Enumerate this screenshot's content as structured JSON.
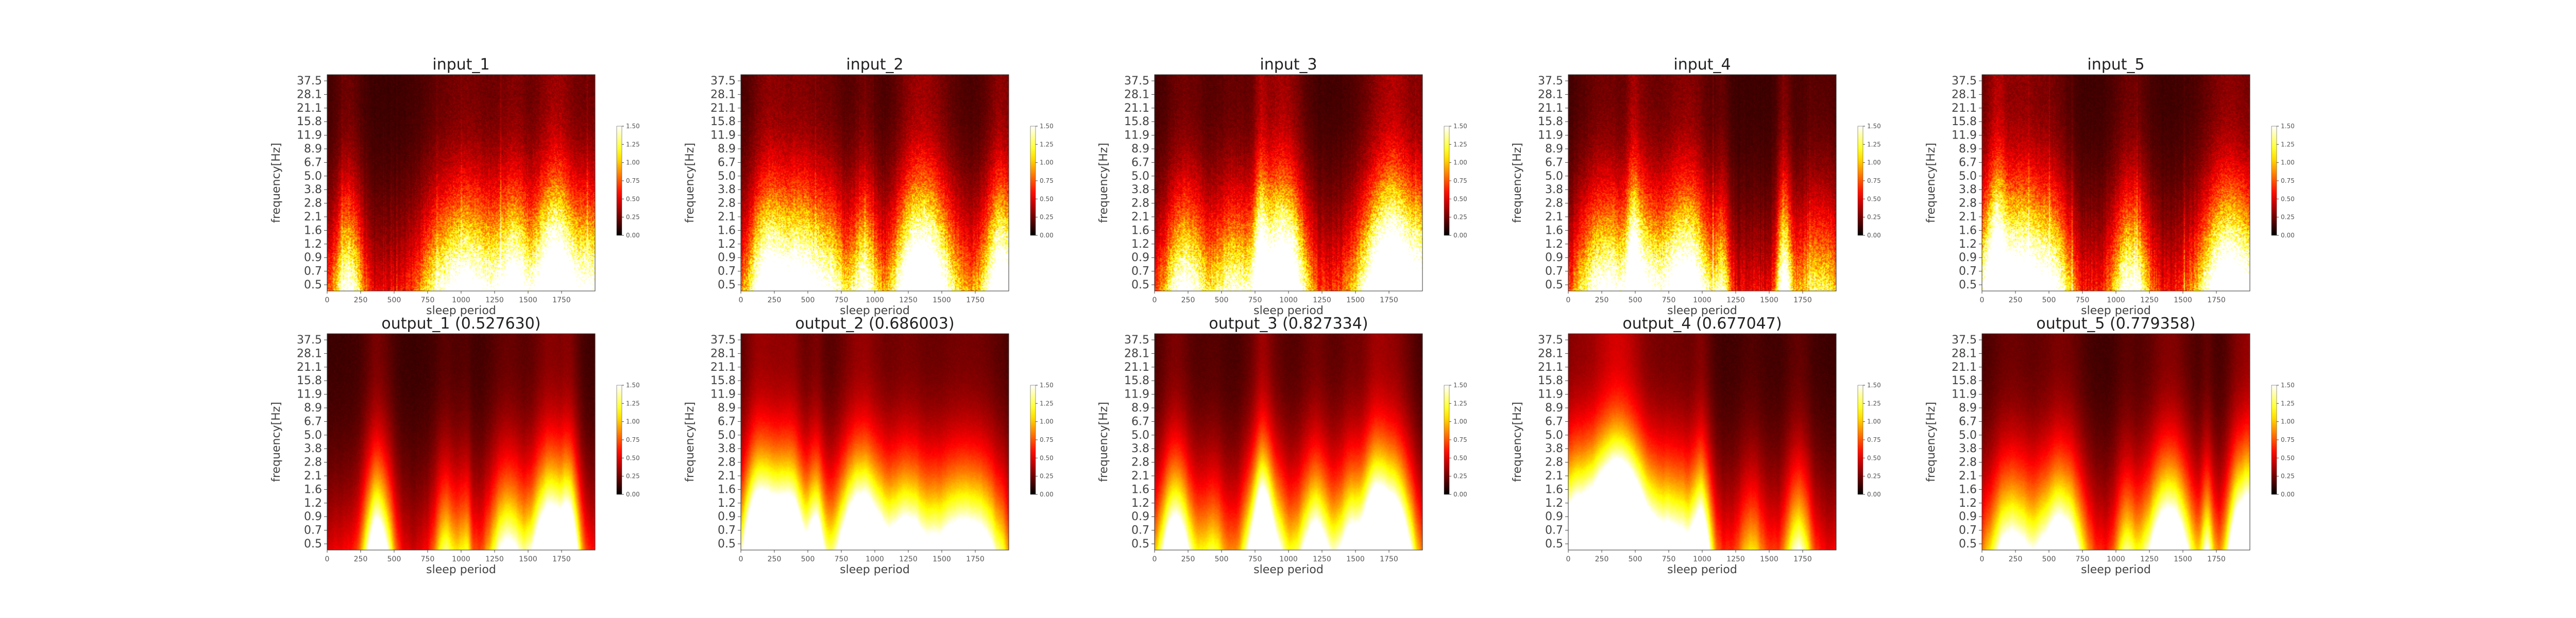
{
  "chart_data": [
    {
      "type": "heatmap",
      "title": "input_1",
      "xlabel": "sleep period",
      "ylabel": "frequency[Hz]",
      "yticks": [
        "37.5",
        "28.1",
        "21.1",
        "15.8",
        "11.9",
        "8.9",
        "6.7",
        "5.0",
        "3.8",
        "2.8",
        "2.1",
        "1.6",
        "1.2",
        "0.9",
        "0.7",
        "0.5"
      ],
      "xticks": [
        "0",
        "250",
        "500",
        "750",
        "1000",
        "1250",
        "1500",
        "1750"
      ],
      "xlim": [
        0,
        2000
      ],
      "colorbar": {
        "ticks": [
          "0.00",
          "0.25",
          "0.50",
          "0.75",
          "1.00",
          "1.25",
          "1.50"
        ],
        "range": [
          0,
          1.5
        ]
      },
      "colormap": "hot"
    },
    {
      "type": "heatmap",
      "title": "input_2",
      "xlabel": "sleep period",
      "ylabel": "frequency[Hz]",
      "yticks": [
        "37.5",
        "28.1",
        "21.1",
        "15.8",
        "11.9",
        "8.9",
        "6.7",
        "5.0",
        "3.8",
        "2.8",
        "2.1",
        "1.6",
        "1.2",
        "0.9",
        "0.7",
        "0.5"
      ],
      "xticks": [
        "0",
        "250",
        "500",
        "750",
        "1000",
        "1250",
        "1500",
        "1750"
      ],
      "xlim": [
        0,
        2000
      ],
      "colorbar": {
        "ticks": [
          "0.00",
          "0.25",
          "0.50",
          "0.75",
          "1.00",
          "1.25",
          "1.50"
        ],
        "range": [
          0,
          1.5
        ]
      },
      "colormap": "hot"
    },
    {
      "type": "heatmap",
      "title": "input_3",
      "xlabel": "sleep period",
      "ylabel": "frequency[Hz]",
      "yticks": [
        "37.5",
        "28.1",
        "21.1",
        "15.8",
        "11.9",
        "8.9",
        "6.7",
        "5.0",
        "3.8",
        "2.8",
        "2.1",
        "1.6",
        "1.2",
        "0.9",
        "0.7",
        "0.5"
      ],
      "xticks": [
        "0",
        "250",
        "500",
        "750",
        "1000",
        "1250",
        "1500",
        "1750"
      ],
      "xlim": [
        0,
        2000
      ],
      "colorbar": {
        "ticks": [
          "0.00",
          "0.25",
          "0.50",
          "0.75",
          "1.00",
          "1.25",
          "1.50"
        ],
        "range": [
          0,
          1.5
        ]
      },
      "colormap": "hot"
    },
    {
      "type": "heatmap",
      "title": "input_4",
      "xlabel": "sleep period",
      "ylabel": "frequency[Hz]",
      "yticks": [
        "37.5",
        "28.1",
        "21.1",
        "15.8",
        "11.9",
        "8.9",
        "6.7",
        "5.0",
        "3.8",
        "2.8",
        "2.1",
        "1.6",
        "1.2",
        "0.9",
        "0.7",
        "0.5"
      ],
      "xticks": [
        "0",
        "250",
        "500",
        "750",
        "1000",
        "1250",
        "1500",
        "1750"
      ],
      "xlim": [
        0,
        2000
      ],
      "colorbar": {
        "ticks": [
          "0.00",
          "0.25",
          "0.50",
          "0.75",
          "1.00",
          "1.25",
          "1.50"
        ],
        "range": [
          0,
          1.5
        ]
      },
      "colormap": "hot"
    },
    {
      "type": "heatmap",
      "title": "input_5",
      "xlabel": "sleep period",
      "ylabel": "frequency[Hz]",
      "yticks": [
        "37.5",
        "28.1",
        "21.1",
        "15.8",
        "11.9",
        "8.9",
        "6.7",
        "5.0",
        "3.8",
        "2.8",
        "2.1",
        "1.6",
        "1.2",
        "0.9",
        "0.7",
        "0.5"
      ],
      "xticks": [
        "0",
        "250",
        "500",
        "750",
        "1000",
        "1250",
        "1500",
        "1750"
      ],
      "xlim": [
        0,
        2000
      ],
      "colorbar": {
        "ticks": [
          "0.00",
          "0.25",
          "0.50",
          "0.75",
          "1.00",
          "1.25",
          "1.50"
        ],
        "range": [
          0,
          1.5
        ]
      },
      "colormap": "hot"
    },
    {
      "type": "heatmap",
      "title": "output_1 (0.527630)",
      "xlabel": "sleep period",
      "ylabel": "frequency[Hz]",
      "yticks": [
        "37.5",
        "28.1",
        "21.1",
        "15.8",
        "11.9",
        "8.9",
        "6.7",
        "5.0",
        "3.8",
        "2.8",
        "2.1",
        "1.6",
        "1.2",
        "0.9",
        "0.7",
        "0.5"
      ],
      "xticks": [
        "0",
        "250",
        "500",
        "750",
        "1000",
        "1250",
        "1500",
        "1750"
      ],
      "xlim": [
        0,
        2000
      ],
      "colorbar": {
        "ticks": [
          "0.00",
          "0.25",
          "0.50",
          "0.75",
          "1.00",
          "1.25",
          "1.50"
        ],
        "range": [
          0,
          1.5
        ]
      },
      "colormap": "hot"
    },
    {
      "type": "heatmap",
      "title": "output_2 (0.686003)",
      "xlabel": "sleep period",
      "ylabel": "frequency[Hz]",
      "yticks": [
        "37.5",
        "28.1",
        "21.1",
        "15.8",
        "11.9",
        "8.9",
        "6.7",
        "5.0",
        "3.8",
        "2.8",
        "2.1",
        "1.6",
        "1.2",
        "0.9",
        "0.7",
        "0.5"
      ],
      "xticks": [
        "0",
        "250",
        "500",
        "750",
        "1000",
        "1250",
        "1500",
        "1750"
      ],
      "xlim": [
        0,
        2000
      ],
      "colorbar": {
        "ticks": [
          "0.00",
          "0.25",
          "0.50",
          "0.75",
          "1.00",
          "1.25",
          "1.50"
        ],
        "range": [
          0,
          1.5
        ]
      },
      "colormap": "hot"
    },
    {
      "type": "heatmap",
      "title": "output_3 (0.827334)",
      "xlabel": "sleep period",
      "ylabel": "frequency[Hz]",
      "yticks": [
        "37.5",
        "28.1",
        "21.1",
        "15.8",
        "11.9",
        "8.9",
        "6.7",
        "5.0",
        "3.8",
        "2.8",
        "2.1",
        "1.6",
        "1.2",
        "0.9",
        "0.7",
        "0.5"
      ],
      "xticks": [
        "0",
        "250",
        "500",
        "750",
        "1000",
        "1250",
        "1500",
        "1750"
      ],
      "xlim": [
        0,
        2000
      ],
      "colorbar": {
        "ticks": [
          "0.00",
          "0.25",
          "0.50",
          "0.75",
          "1.00",
          "1.25",
          "1.50"
        ],
        "range": [
          0,
          1.5
        ]
      },
      "colormap": "hot"
    },
    {
      "type": "heatmap",
      "title": "output_4 (0.677047)",
      "xlabel": "sleep period",
      "ylabel": "frequency[Hz]",
      "yticks": [
        "37.5",
        "28.1",
        "21.1",
        "15.8",
        "11.9",
        "8.9",
        "6.7",
        "5.0",
        "3.8",
        "2.8",
        "2.1",
        "1.6",
        "1.2",
        "0.9",
        "0.7",
        "0.5"
      ],
      "xticks": [
        "0",
        "250",
        "500",
        "750",
        "1000",
        "1250",
        "1500",
        "1750"
      ],
      "xlim": [
        0,
        2000
      ],
      "colorbar": {
        "ticks": [
          "0.00",
          "0.25",
          "0.50",
          "0.75",
          "1.00",
          "1.25",
          "1.50"
        ],
        "range": [
          0,
          1.5
        ]
      },
      "colormap": "hot"
    },
    {
      "type": "heatmap",
      "title": "output_5 (0.779358)",
      "xlabel": "sleep period",
      "ylabel": "frequency[Hz]",
      "yticks": [
        "37.5",
        "28.1",
        "21.1",
        "15.8",
        "11.9",
        "8.9",
        "6.7",
        "5.0",
        "3.8",
        "2.8",
        "2.1",
        "1.6",
        "1.2",
        "0.9",
        "0.7",
        "0.5"
      ],
      "xticks": [
        "0",
        "250",
        "500",
        "750",
        "1000",
        "1250",
        "1500",
        "1750"
      ],
      "xlim": [
        0,
        2000
      ],
      "colorbar": {
        "ticks": [
          "0.00",
          "0.25",
          "0.50",
          "0.75",
          "1.00",
          "1.25",
          "1.50"
        ],
        "range": [
          0,
          1.5
        ]
      },
      "colormap": "hot"
    }
  ]
}
